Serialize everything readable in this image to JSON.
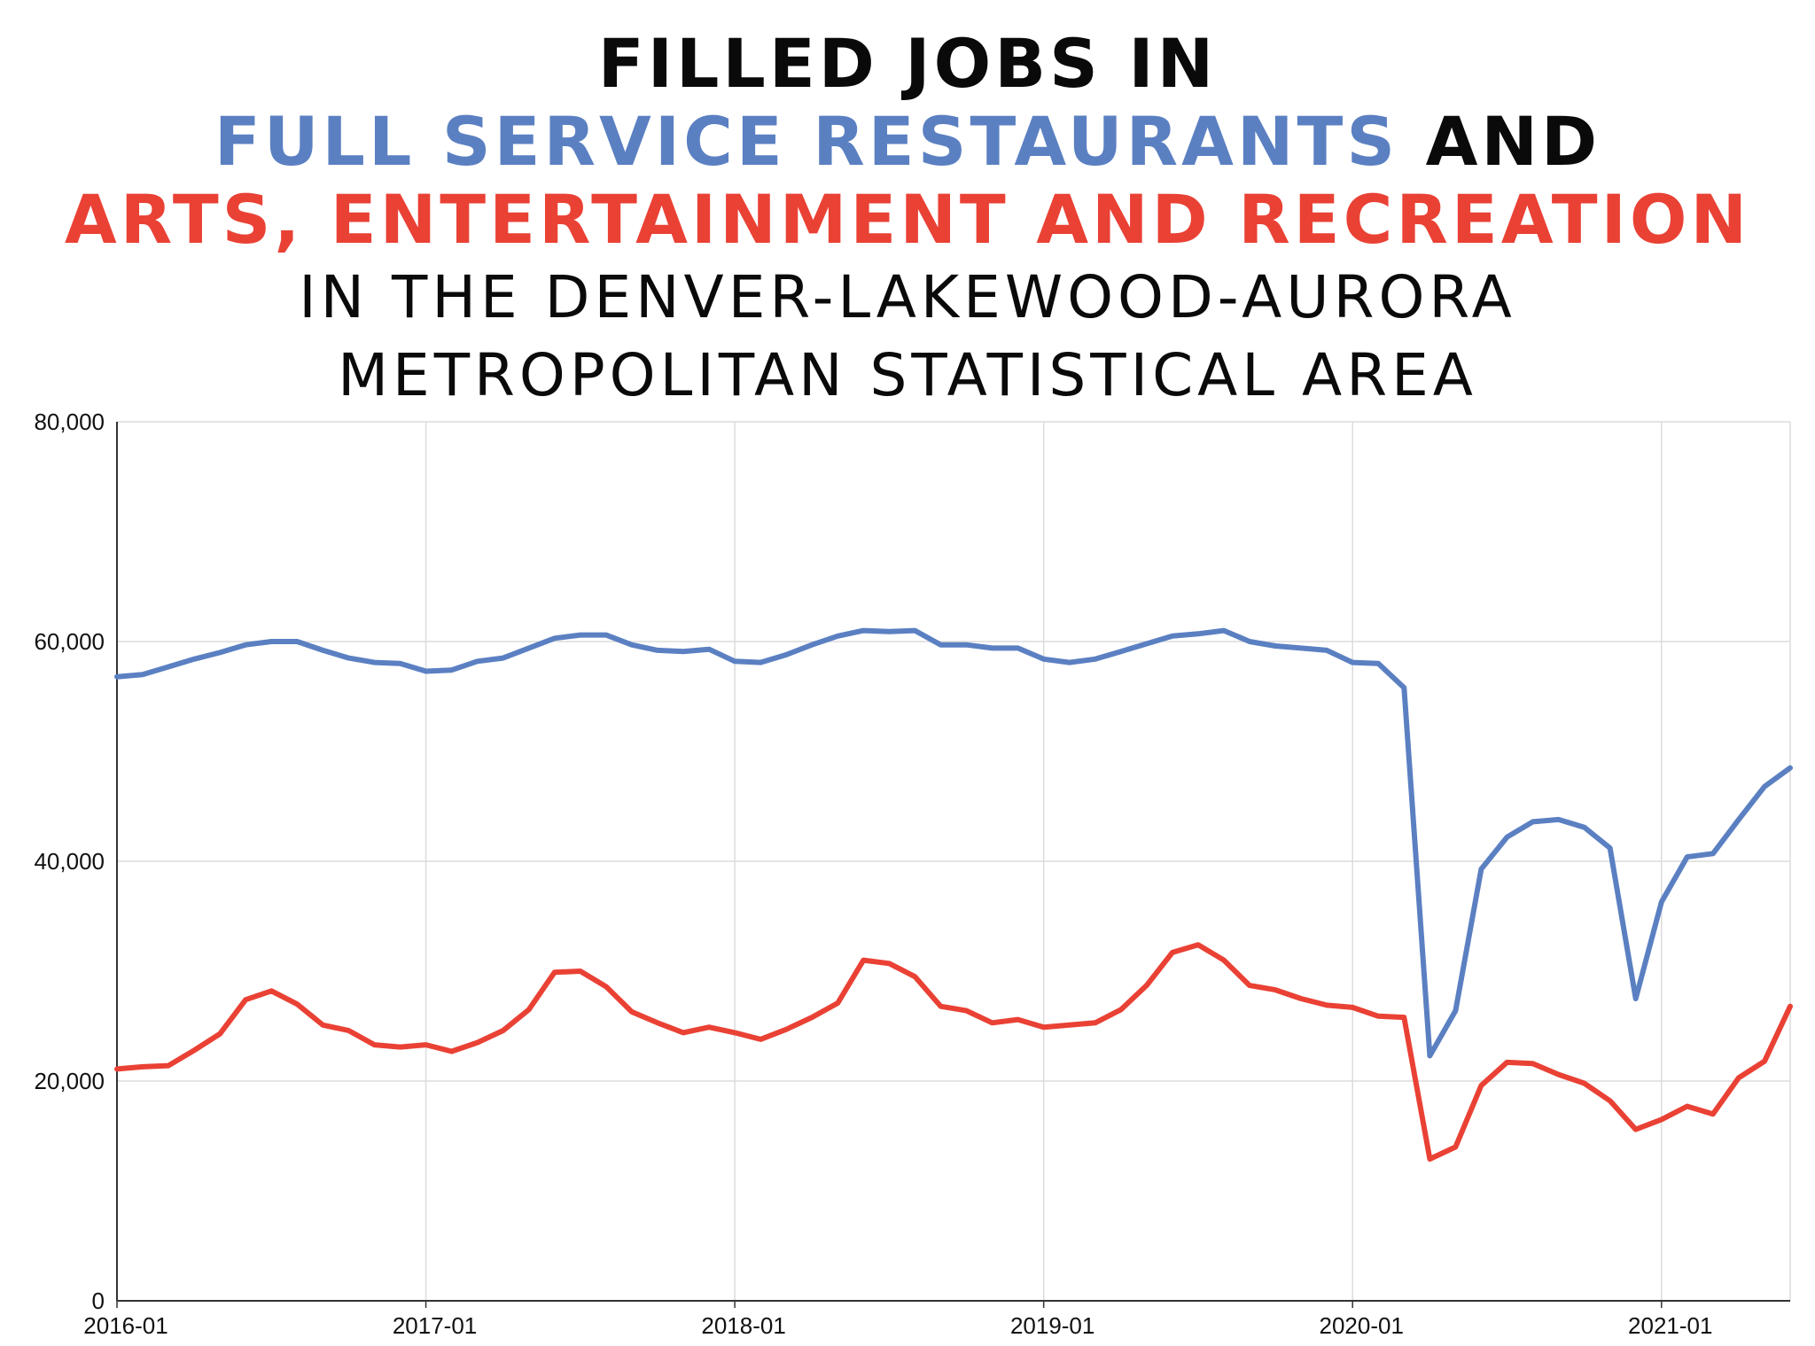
{
  "title": {
    "line1": "FILLED JOBS IN",
    "line2_series1": "FULL SERVICE RESTAURANTS",
    "line2_and": "AND",
    "line3_series2": "ARTS, ENTERTAINMENT AND RECREATION",
    "line4": "IN THE DENVER-LAKEWOOD-AURORA",
    "line5": "METROPOLITAN STATISTICAL AREA"
  },
  "colors": {
    "series1": "#5b80c2",
    "series2": "#ea4135",
    "text": "#0a0a0a",
    "grid": "#dcdcdc"
  },
  "chart_data": {
    "type": "line",
    "xlabel": "",
    "ylabel": "",
    "ylim": [
      0,
      80000
    ],
    "yticks": [
      0,
      20000,
      40000,
      60000,
      80000
    ],
    "ytick_labels": [
      "0",
      "20,000",
      "40,000",
      "60,000",
      "80,000"
    ],
    "xtick_labels": [
      "2016-01",
      "2017-01",
      "2018-01",
      "2019-01",
      "2020-01",
      "2021-01"
    ],
    "xticks_month_index": [
      0,
      12,
      24,
      36,
      48,
      60
    ],
    "x_start": "2016-01",
    "x_end": "2021-06",
    "grid": true,
    "series": [
      {
        "name": "FULL SERVICE RESTAURANTS",
        "color": "#5b80c2",
        "values": [
          56800,
          57000,
          57700,
          58400,
          59000,
          59700,
          60000,
          60000,
          59200,
          58500,
          58100,
          58000,
          57300,
          57400,
          58200,
          58500,
          59400,
          60300,
          60600,
          60600,
          59700,
          59200,
          59100,
          59300,
          58200,
          58100,
          58800,
          59700,
          60500,
          61000,
          60900,
          61000,
          59700,
          59700,
          59400,
          59400,
          58400,
          58100,
          58400,
          59100,
          59800,
          60500,
          60700,
          61000,
          60000,
          59600,
          59400,
          59200,
          58100,
          58000,
          55800,
          22300,
          26400,
          39300,
          42200,
          43600,
          43800,
          43100,
          41200,
          27500,
          36300,
          40400,
          40700,
          43800,
          46800,
          48500
        ]
      },
      {
        "name": "ARTS, ENTERTAINMENT AND RECREATION",
        "color": "#ea4135",
        "values": [
          21100,
          21300,
          21400,
          22800,
          24300,
          27400,
          28200,
          27000,
          25100,
          24600,
          23300,
          23100,
          23300,
          22700,
          23500,
          24600,
          26500,
          29900,
          30000,
          28600,
          26300,
          25300,
          24400,
          24900,
          24400,
          23800,
          24700,
          25800,
          27100,
          31000,
          30700,
          29500,
          26800,
          26400,
          25300,
          25600,
          24900,
          25100,
          25300,
          26500,
          28700,
          31700,
          32400,
          31000,
          28700,
          28300,
          27500,
          26900,
          26700,
          25900,
          25800,
          12900,
          14000,
          19600,
          21700,
          21600,
          20600,
          19800,
          18200,
          15600,
          16500,
          17700,
          17000,
          20300,
          21800,
          26800
        ]
      }
    ]
  }
}
